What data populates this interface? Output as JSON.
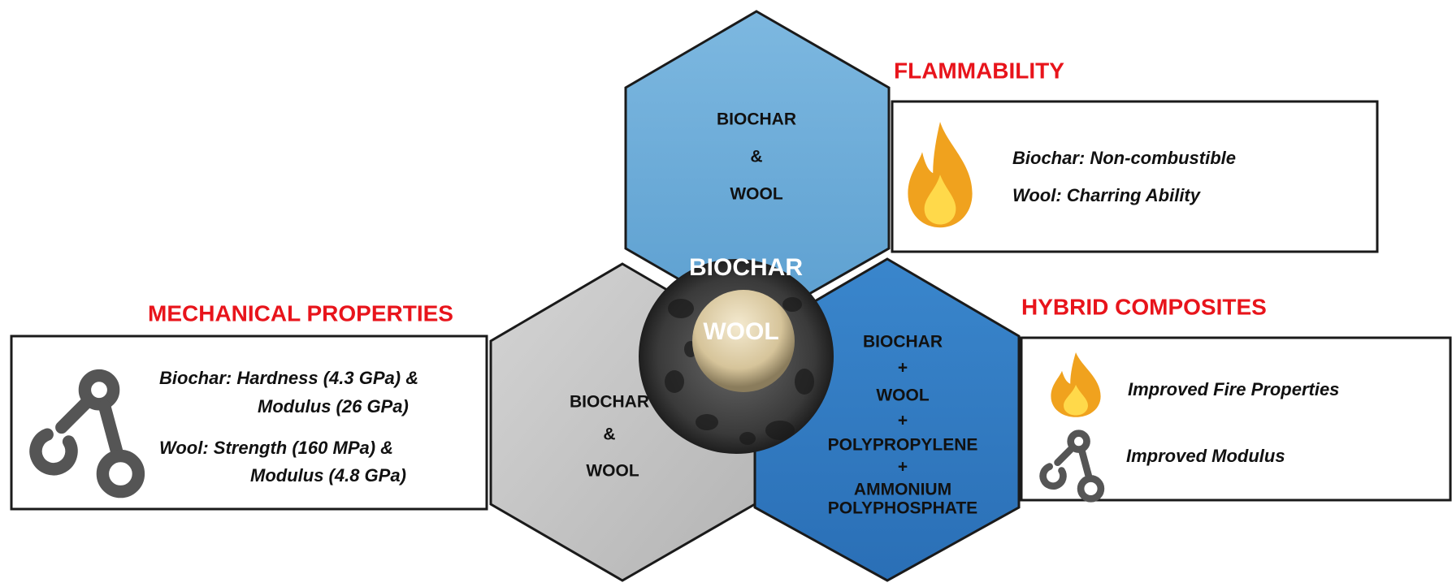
{
  "center": {
    "outer_label": "BIOCHAR",
    "inner_label": "WOOL"
  },
  "hexagons": [
    {
      "lines": [
        "BIOCHAR",
        "&",
        "WOOL"
      ]
    },
    {
      "lines": [
        "BIOCHAR",
        "&",
        "WOOL"
      ]
    },
    {
      "lines": [
        "BIOCHAR",
        "+",
        "WOOL",
        "+",
        "POLYPROPYLENE",
        "+",
        "AMMONIUM",
        "POLYPHOSPHATE"
      ]
    }
  ],
  "panels": [
    {
      "title": "FLAMMABILITY",
      "lines": [
        "Biochar: Non-combustible",
        "Wool: Charring Ability"
      ]
    },
    {
      "title": "MECHANICAL PROPERTIES",
      "lines": [
        "Biochar: Hardness (4.3 GPa) &",
        "Modulus (26 GPa)",
        "Wool: Strength (160 MPa) &",
        "Modulus (4.8 GPa)"
      ]
    },
    {
      "title": "HYBRID COMPOSITES",
      "lines": [
        "Improved Fire Properties",
        "Improved Modulus"
      ]
    }
  ]
}
